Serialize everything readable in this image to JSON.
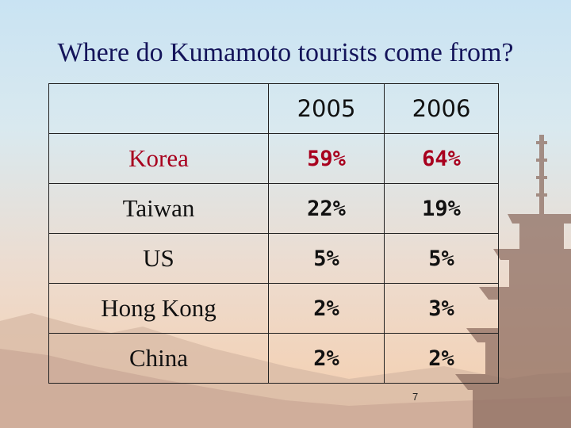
{
  "slide": {
    "title": "Where do Kumamoto tourists come from?",
    "page_number": "7"
  },
  "table": {
    "headers": [
      "",
      "2005",
      "2006"
    ],
    "rows": [
      {
        "label": "Korea",
        "v2005": "59%",
        "v2006": "64%",
        "highlight": true
      },
      {
        "label": "Taiwan",
        "v2005": "22%",
        "v2006": "19%",
        "highlight": false
      },
      {
        "label": "US",
        "v2005": "5%",
        "v2006": "5%",
        "highlight": false
      },
      {
        "label": "Hong Kong",
        "v2005": "2%",
        "v2006": "3%",
        "highlight": false
      },
      {
        "label": "China",
        "v2005": "2%",
        "v2006": "2%",
        "highlight": false
      }
    ]
  },
  "colors": {
    "title": "#14145a",
    "highlight": "#a8001e",
    "text": "#111111"
  }
}
